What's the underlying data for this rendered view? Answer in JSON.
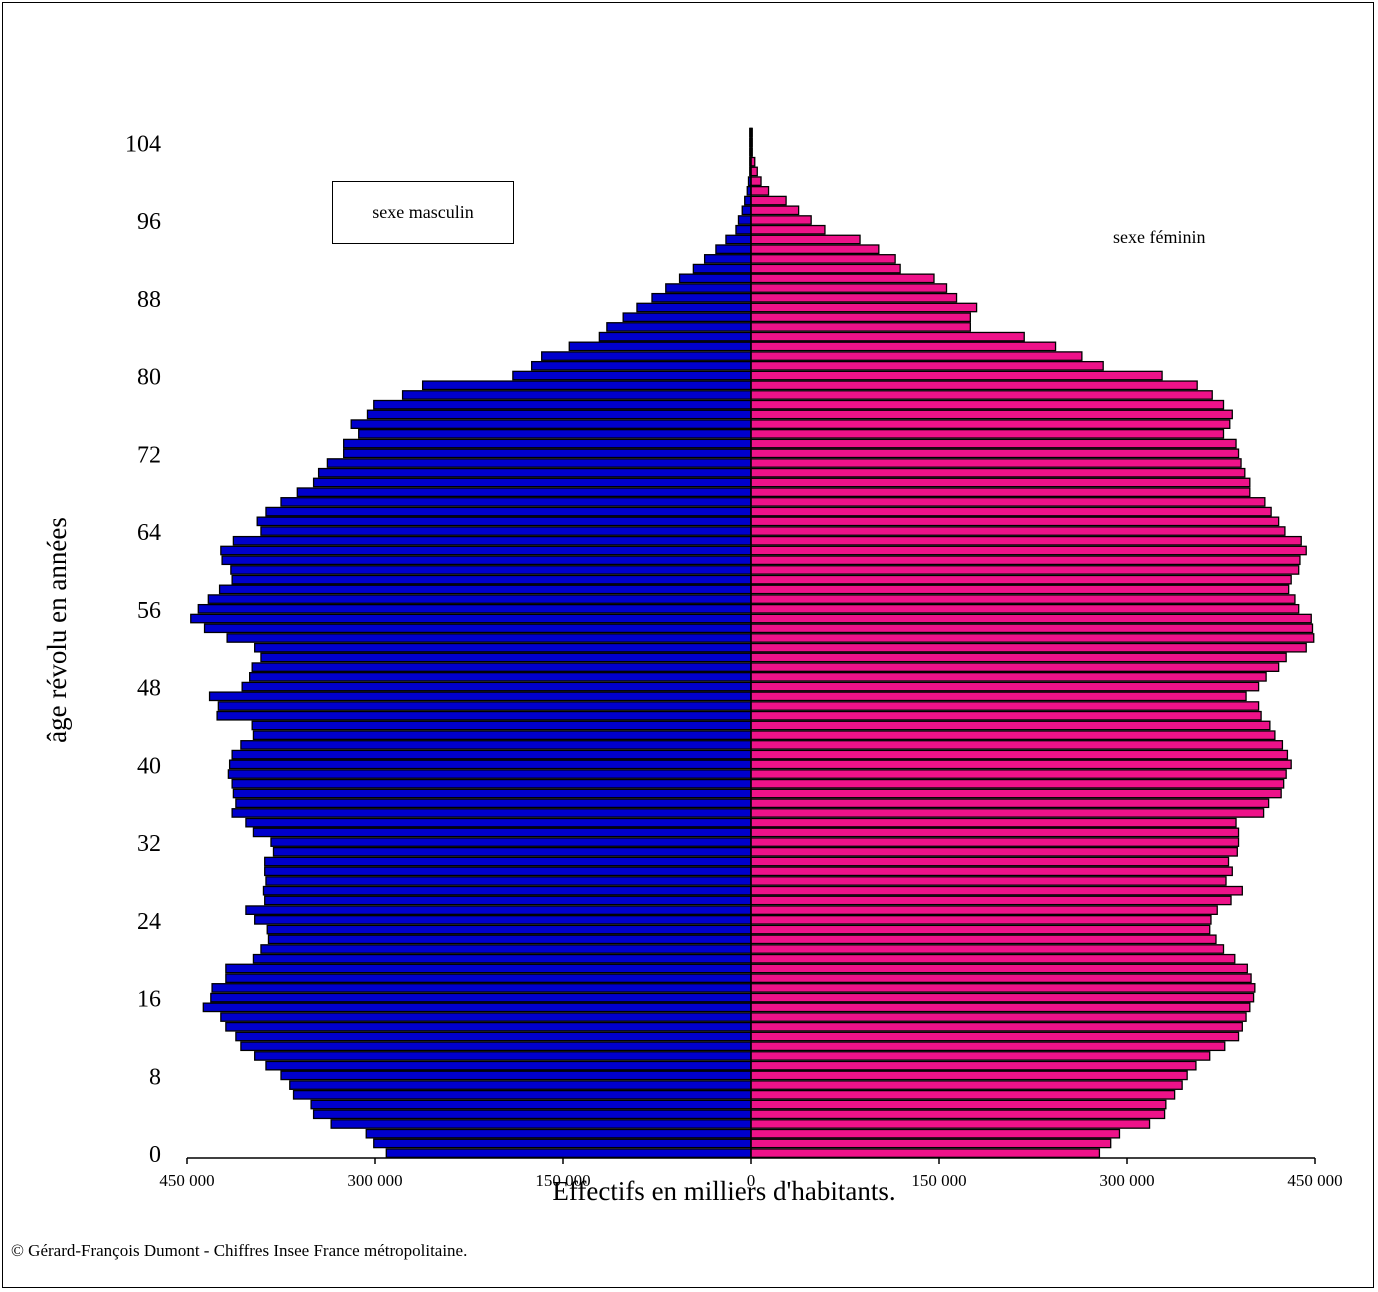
{
  "chart_data": {
    "type": "bar",
    "orientation": "horizontal",
    "xlabel": "Effectifs en milliers d'habitants.",
    "ylabel": "âge révolu en années",
    "xlim": [
      -450000,
      450000
    ],
    "ylim": [
      0,
      105
    ],
    "x_tick_labels": [
      "450 000",
      "300 000",
      "150 000",
      "0",
      "150 000",
      "300 000",
      "450 000"
    ],
    "y_ticks": [
      0,
      8,
      16,
      24,
      32,
      40,
      48,
      56,
      64,
      72,
      80,
      88,
      96,
      104
    ],
    "ages": [
      0,
      1,
      2,
      3,
      4,
      5,
      6,
      7,
      8,
      9,
      10,
      11,
      12,
      13,
      14,
      15,
      16,
      17,
      18,
      19,
      20,
      21,
      22,
      23,
      24,
      25,
      26,
      27,
      28,
      29,
      30,
      31,
      32,
      33,
      34,
      35,
      36,
      37,
      38,
      39,
      40,
      41,
      42,
      43,
      44,
      45,
      46,
      47,
      48,
      49,
      50,
      51,
      52,
      53,
      54,
      55,
      56,
      57,
      58,
      59,
      60,
      61,
      62,
      63,
      64,
      65,
      66,
      67,
      68,
      69,
      70,
      71,
      72,
      73,
      74,
      75,
      76,
      77,
      78,
      79,
      80,
      81,
      82,
      83,
      84,
      85,
      86,
      87,
      88,
      89,
      90,
      91,
      92,
      93,
      94,
      95,
      96,
      97,
      98,
      99,
      100,
      101,
      102,
      103,
      104,
      105
    ],
    "series": [
      {
        "name": "sexe masculin",
        "color": "#0000cc",
        "values": [
          291000,
          301000,
          307000,
          335000,
          349000,
          351000,
          365000,
          368000,
          375000,
          387000,
          396000,
          407000,
          411000,
          419000,
          423000,
          437000,
          431000,
          430000,
          419000,
          419000,
          397000,
          391000,
          385000,
          386000,
          396000,
          403000,
          388000,
          389000,
          387000,
          388000,
          388000,
          381000,
          383000,
          397000,
          403000,
          414000,
          411000,
          413000,
          414000,
          417000,
          416000,
          414000,
          407000,
          397000,
          398000,
          426000,
          425000,
          432000,
          406000,
          400000,
          398000,
          391000,
          396000,
          418000,
          436000,
          447000,
          441000,
          433000,
          424000,
          414000,
          415000,
          422000,
          423000,
          413000,
          391000,
          394000,
          387000,
          375000,
          362000,
          349000,
          345000,
          338000,
          325000,
          325000,
          313000,
          319000,
          306000,
          301000,
          278000,
          262000,
          190000,
          175000,
          167000,
          145000,
          121000,
          115000,
          102000,
          91000,
          79000,
          68000,
          57000,
          46000,
          37000,
          28000,
          20000,
          12000,
          10000,
          7000,
          5000,
          3000,
          2000,
          1000,
          1000,
          1000,
          1000,
          1000
        ]
      },
      {
        "name": "sexe féminin",
        "color": "#ee1289",
        "values": [
          278000,
          287000,
          294000,
          318000,
          330000,
          331000,
          338000,
          344000,
          348000,
          355000,
          366000,
          378000,
          389000,
          392000,
          395000,
          398000,
          401000,
          402000,
          399000,
          396000,
          386000,
          377000,
          371000,
          366000,
          367000,
          372000,
          383000,
          392000,
          379000,
          384000,
          381000,
          388000,
          389000,
          389000,
          387000,
          409000,
          413000,
          423000,
          425000,
          427000,
          431000,
          428000,
          424000,
          418000,
          414000,
          407000,
          405000,
          395000,
          405000,
          411000,
          421000,
          427000,
          443000,
          449000,
          448000,
          447000,
          437000,
          434000,
          429000,
          431000,
          437000,
          438000,
          443000,
          439000,
          426000,
          421000,
          415000,
          410000,
          398000,
          398000,
          394000,
          391000,
          389000,
          387000,
          377000,
          382000,
          384000,
          377000,
          368000,
          356000,
          328000,
          281000,
          264000,
          243000,
          218000,
          175000,
          175000,
          180000,
          164000,
          156000,
          146000,
          119000,
          115000,
          102000,
          87000,
          59000,
          48000,
          38000,
          28000,
          14000,
          8000,
          5000,
          3000,
          1000,
          1000,
          1000
        ]
      }
    ]
  },
  "legend": {
    "male_label": "sexe masculin",
    "female_label": "sexe féminin"
  },
  "footer": {
    "copyright": "© Gérard-François Dumont - Chiffres Insee France métropolitaine."
  }
}
